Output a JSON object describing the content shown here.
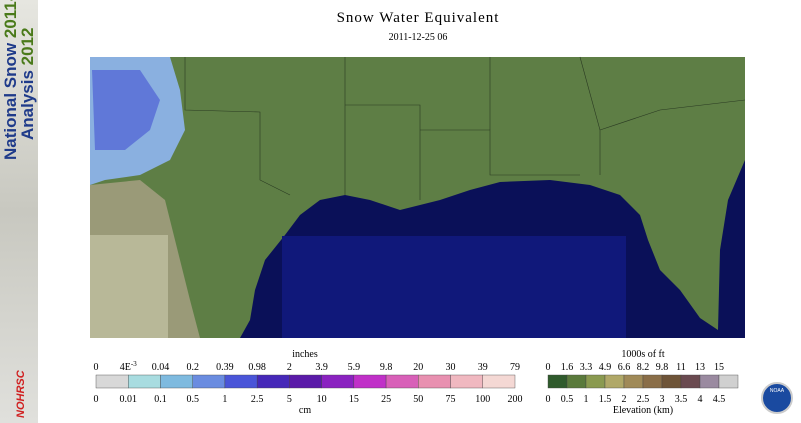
{
  "header": {
    "title": "Snow Water Equivalent",
    "timestamp": "2011-12-25 06"
  },
  "sidebar": {
    "line1": "National Snow",
    "line1_year": "2011-",
    "line2": "Analysis",
    "line2_year": "2012",
    "logo": "NOHRSC"
  },
  "snow_legend": {
    "top_unit": "inches",
    "bottom_unit": "cm",
    "top_labels": [
      "0",
      {
        "base": "4E",
        "exp": "-3"
      },
      "0.04",
      "0.2",
      "0.39",
      "0.98",
      "2",
      "3.9",
      "5.9",
      "9.8",
      "20",
      "30",
      "39",
      "79"
    ],
    "bottom_labels": [
      "0",
      "0.01",
      "0.1",
      "0.5",
      "1",
      "2.5",
      "5",
      "10",
      "15",
      "25",
      "50",
      "75",
      "100",
      "200"
    ],
    "colors": [
      "#d8d8d8",
      "#a8dce0",
      "#7ebadf",
      "#6a8ce0",
      "#4a55d8",
      "#4628b8",
      "#5a1aa8",
      "#8a22c0",
      "#c030c8",
      "#d860b8",
      "#e890b0",
      "#f0b8c0",
      "#f4d8d4"
    ]
  },
  "elevation_legend": {
    "top_unit": "1000s of ft",
    "bottom_unit": "Elevation (km)",
    "top_labels": [
      "0",
      "1.6",
      "3.3",
      "4.9",
      "6.6",
      "8.2",
      "9.8",
      "11",
      "13",
      "15"
    ],
    "bottom_labels": [
      "0",
      "0.5",
      "1",
      "1.5",
      "2",
      "2.5",
      "3",
      "3.5",
      "4",
      "4.5"
    ],
    "colors": [
      "#2f5a2c",
      "#5a7a3c",
      "#8a9a50",
      "#b0a868",
      "#a08a58",
      "#8a6e48",
      "#6e5438",
      "#6a4a50",
      "#9a8aa0",
      "#d0d0d0"
    ]
  },
  "logo": "NOAA"
}
